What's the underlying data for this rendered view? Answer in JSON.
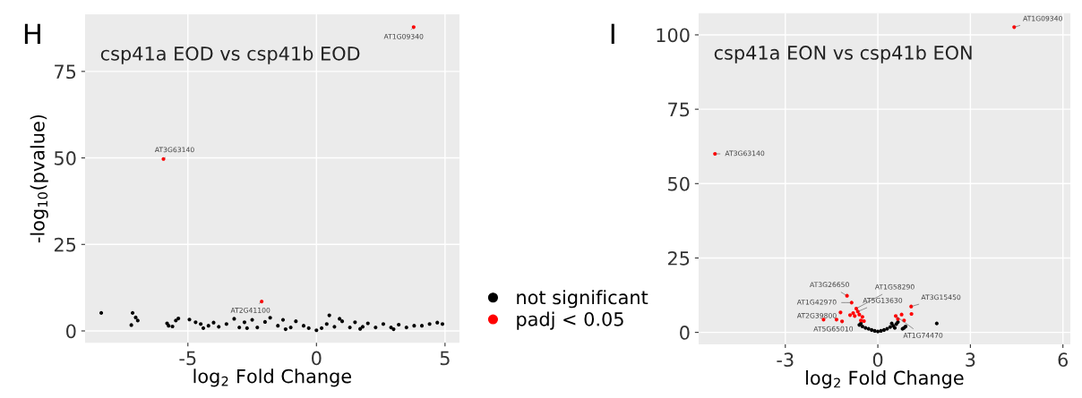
{
  "chart_data": [
    {
      "type": "scatter",
      "title": "csp41a EOD vs csp41b EOD",
      "xlabel": "log$_{2}$ Fold Change",
      "ylabel": "-log$_{10}$(pvalue)",
      "xlim": [
        -9.0,
        5.56
      ],
      "ylim": [
        -3.4,
        91.5
      ],
      "xticks": [
        -5,
        0,
        5
      ],
      "yticks": [
        0,
        25,
        50,
        75
      ],
      "grid": true,
      "legend": "right",
      "marker": "circle",
      "annotations": [
        "H",
        {
          "text": "AT1G09340",
          "x": 3.78,
          "y": 87.8
        },
        {
          "text": "AT3G63140",
          "x": -5.95,
          "y": 49.7
        },
        {
          "text": "AT2G41100",
          "x": -2.13,
          "y": 8.5
        }
      ],
      "series": [
        {
          "name": "not significant",
          "color": "#000000",
          "x": [
            -8.37,
            -7.15,
            -7.03,
            -6.95,
            -7.2,
            -5.81,
            -5.6,
            -5.47,
            -5.37,
            -5.75,
            -4.94,
            -4.7,
            -4.5,
            -4.2,
            -4.0,
            -3.8,
            -3.5,
            -3.2,
            -3.0,
            -2.8,
            -2.5,
            -2.3,
            -2.0,
            -1.8,
            -1.5,
            -1.3,
            -1.0,
            -0.8,
            -0.5,
            -0.3,
            0,
            0.2,
            0.4,
            0.5,
            0.7,
            1.0,
            1.3,
            1.5,
            1.8,
            2.0,
            2.3,
            2.6,
            2.9,
            3.2,
            3.5,
            3.8,
            4.1,
            4.4,
            4.7,
            4.9,
            0.9,
            -2.7,
            -1.2,
            1.7,
            3.0,
            -4.4
          ],
          "values": [
            5.2,
            5.2,
            3.9,
            3.0,
            1.7,
            2.2,
            1.3,
            3.0,
            3.6,
            1.5,
            3.3,
            2.5,
            2.0,
            1.5,
            2.4,
            1.2,
            2.0,
            3.5,
            1.0,
            2.5,
            3.2,
            1.0,
            2.6,
            3.8,
            1.5,
            3.2,
            1.0,
            2.8,
            1.5,
            0.8,
            0.2,
            0.8,
            2.0,
            4.5,
            1.2,
            2.8,
            1.0,
            2.5,
            1.2,
            2.2,
            1.0,
            2.0,
            1.0,
            1.8,
            1.0,
            1.5,
            1.5,
            2.0,
            2.4,
            2.0,
            3.5,
            0.8,
            0.5,
            0.6,
            0.5,
            0.8
          ]
        },
        {
          "name": "padj < 0.05",
          "color": "#ff0000",
          "x": [
            3.78,
            -5.95,
            -2.13
          ],
          "values": [
            87.8,
            49.7,
            8.5
          ]
        }
      ]
    },
    {
      "type": "scatter",
      "title": "csp41a EON vs csp41b EON",
      "xlabel": "log$_{2}$ Fold Change",
      "xlim": [
        -5.81,
        6.24
      ],
      "ylim": [
        -4.0,
        107.3
      ],
      "xticks": [
        -3,
        0,
        3,
        6
      ],
      "yticks": [
        0,
        25,
        50,
        75,
        100
      ],
      "grid": true,
      "marker": "circle",
      "annotations": [
        "I",
        {
          "text": "AT1G09340",
          "x": 4.42,
          "y": 102.6
        },
        {
          "text": "AT3G63140",
          "x": -5.28,
          "y": 60.0
        },
        {
          "text": "AT3G26650",
          "x": -1.0,
          "y": 12.3
        },
        {
          "text": "AT1G58290",
          "x": -0.7,
          "y": 8.0
        },
        {
          "text": "AT5G13630",
          "x": -0.65,
          "y": 7.0
        },
        {
          "text": "AT1G42970",
          "x": -0.85,
          "y": 10.0
        },
        {
          "text": "AT3G15450",
          "x": 1.08,
          "y": 8.7
        },
        {
          "text": "AT2G39800",
          "x": -1.21,
          "y": 6.7
        },
        {
          "text": "AT5G65010",
          "x": -1.16,
          "y": 3.7
        },
        {
          "text": "AT1G74470",
          "x": 0.58,
          "y": 5.5
        }
      ],
      "series": [
        {
          "name": "not significant",
          "color": "#000000",
          "x": [
            -0.6,
            -0.5,
            -0.4,
            -0.3,
            -0.2,
            -0.1,
            0,
            0.1,
            0.2,
            0.3,
            0.4,
            0.5,
            0.6,
            0.65,
            0.55,
            0.85,
            0.9,
            0.8,
            1.91,
            -0.55,
            0.45
          ],
          "values": [
            2.5,
            2.0,
            1.5,
            1.2,
            0.8,
            0.5,
            0.3,
            0.5,
            0.8,
            1.2,
            1.8,
            2.2,
            2.8,
            3.5,
            1.5,
            1.5,
            2.0,
            1.2,
            3.0,
            3.0,
            3.0
          ]
        },
        {
          "name": "padj < 0.05",
          "color": "#ff0000",
          "x": [
            4.42,
            -5.28,
            -1.0,
            -0.7,
            -0.65,
            -0.85,
            1.08,
            -1.21,
            -1.16,
            0.58,
            -1.76,
            -1.34,
            1.09,
            0.77,
            -0.6,
            -0.75,
            -0.55,
            -0.8,
            -0.9,
            -0.5,
            -0.45,
            0.65,
            0.85
          ],
          "values": [
            102.6,
            60.0,
            12.3,
            8.0,
            7.0,
            10.0,
            8.7,
            6.7,
            3.7,
            5.5,
            4.3,
            4.3,
            6.2,
            6.0,
            6.0,
            5.5,
            4.0,
            6.5,
            5.8,
            5.2,
            3.8,
            4.5,
            4.0
          ]
        }
      ]
    }
  ]
}
